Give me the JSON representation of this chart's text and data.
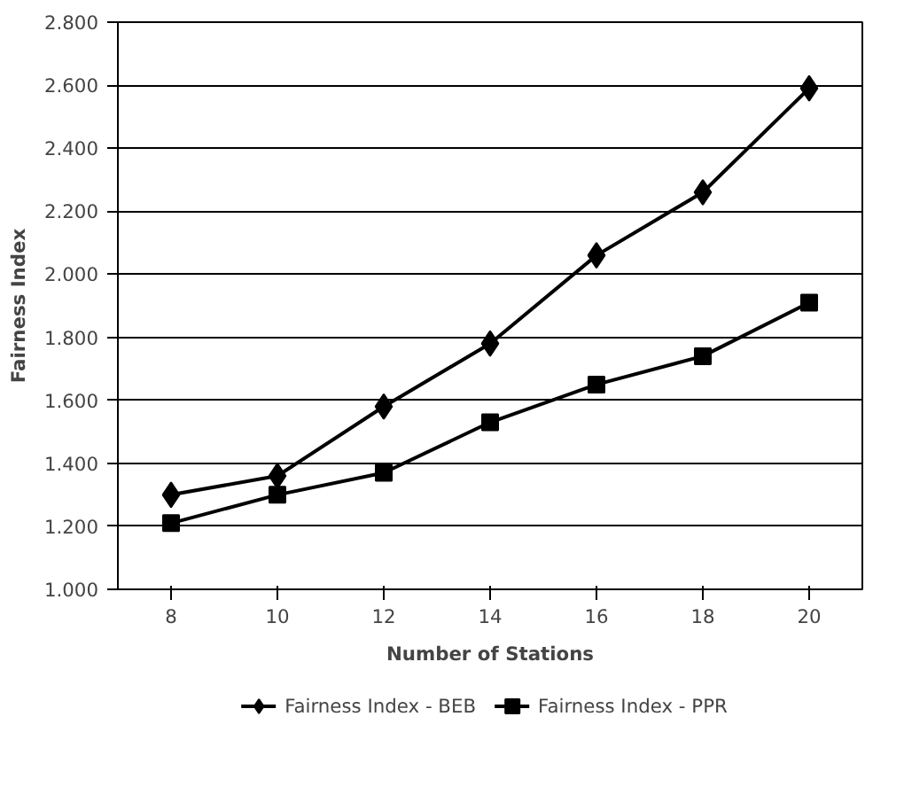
{
  "chart_data": {
    "type": "line",
    "xlabel": "Number of Stations",
    "ylabel": "Fairness Index",
    "categories": [
      "8",
      "10",
      "12",
      "14",
      "16",
      "18",
      "20"
    ],
    "series": [
      {
        "name": "Fairness Index - BEB",
        "color": "#000000",
        "marker": "diamond",
        "values": [
          1.3,
          1.36,
          1.58,
          1.78,
          2.06,
          2.26,
          2.59
        ]
      },
      {
        "name": "Fairness Index - PPR",
        "color": "#000000",
        "marker": "square",
        "values": [
          1.21,
          1.3,
          1.37,
          1.53,
          1.65,
          1.74,
          1.91
        ]
      }
    ],
    "ylim": [
      1.0,
      2.8
    ],
    "yticks": [
      {
        "value": 1.0,
        "label": "1.000"
      },
      {
        "value": 1.2,
        "label": "1.200"
      },
      {
        "value": 1.4,
        "label": "1.400"
      },
      {
        "value": 1.6,
        "label": "1.600"
      },
      {
        "value": 1.8,
        "label": "1.800"
      },
      {
        "value": 2.0,
        "label": "2.000"
      },
      {
        "value": 2.2,
        "label": "2.200"
      },
      {
        "value": 2.4,
        "label": "2.400"
      },
      {
        "value": 2.6,
        "label": "2.600"
      },
      {
        "value": 2.8,
        "label": "2.800"
      }
    ],
    "grid": "y",
    "legend": "bottom",
    "line_style": "solid"
  }
}
